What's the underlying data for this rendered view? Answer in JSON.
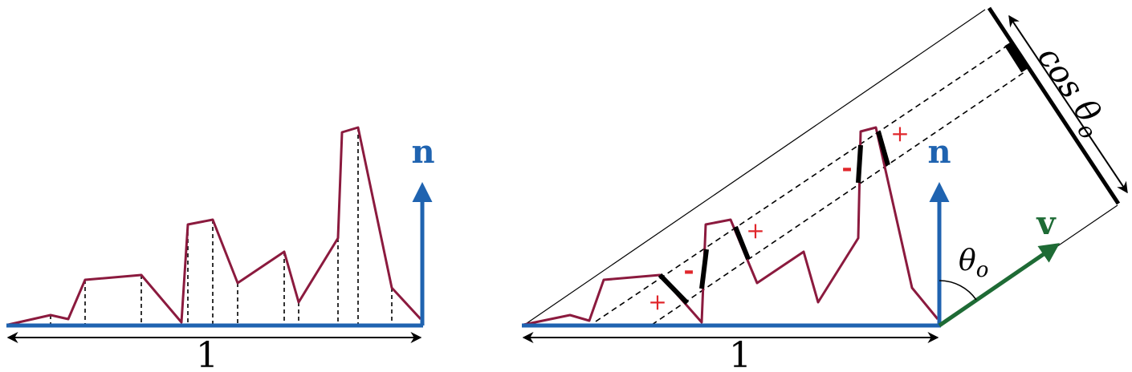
{
  "colors": {
    "surface": "#8b1a3e",
    "baseline": "#1f63b0",
    "normal": "#1f63b0",
    "view": "#1e6b35",
    "sign": "#e0262b",
    "ink": "#000000"
  },
  "left_panel": {
    "normal_label": "n",
    "width_label": "1"
  },
  "right_panel": {
    "normal_label": "n",
    "view_label": "v",
    "angle_label": "θ",
    "angle_subscript": "o",
    "projection_label": "cos θ",
    "projection_subscript": "o",
    "width_label": "1",
    "signs": [
      "+",
      "-",
      "+",
      "-",
      "+"
    ]
  },
  "icons": {
    "normal_arrow": "arrow-up-icon",
    "view_arrow": "arrow-diagonal-icon",
    "width_arrow": "double-arrow-icon"
  }
}
